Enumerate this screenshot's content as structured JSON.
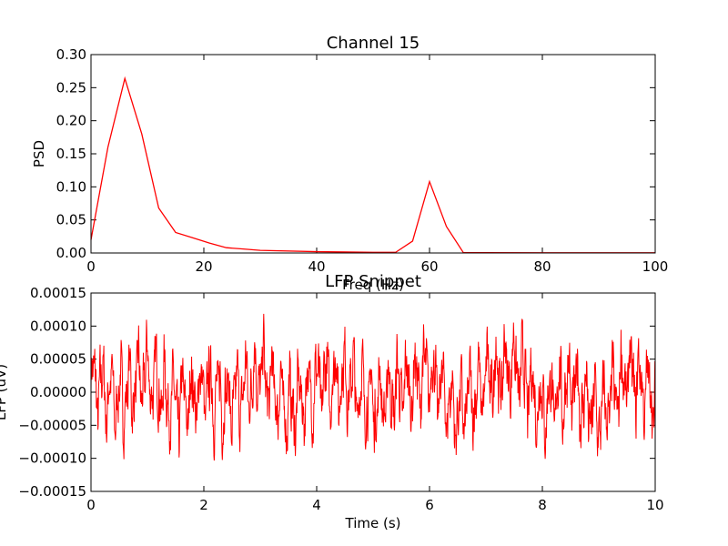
{
  "colors": {
    "line": "#ff0000",
    "axes": "#000000",
    "background": "#ffffff"
  },
  "chart_data": [
    {
      "type": "line",
      "title": "Channel 15",
      "xlabel": "Freq (Hz)",
      "ylabel": "PSD",
      "xlim": [
        0,
        100
      ],
      "ylim": [
        0,
        0.3
      ],
      "xticks": [
        "0",
        "20",
        "40",
        "60",
        "80",
        "100"
      ],
      "yticks": [
        "0.00",
        "0.05",
        "0.10",
        "0.15",
        "0.20",
        "0.25",
        "0.30"
      ],
      "grid": false,
      "series": [
        {
          "x": [
            0,
            3,
            6,
            9,
            12,
            15,
            18,
            21,
            24,
            27,
            30,
            40,
            50,
            54,
            57,
            60,
            63,
            66,
            70,
            80,
            90,
            100
          ],
          "values": [
            0.02,
            0.16,
            0.264,
            0.18,
            0.068,
            0.031,
            0.023,
            0.015,
            0.008,
            0.006,
            0.004,
            0.002,
            0.001,
            0.001,
            0.018,
            0.108,
            0.04,
            0.0005,
            0.0004,
            0.0003,
            0.0003,
            0.0003
          ]
        }
      ]
    },
    {
      "type": "line",
      "title": "LFP Snippet",
      "xlabel": "Time (s)",
      "ylabel": "LFP (uV)",
      "xlim": [
        0,
        10
      ],
      "ylim": [
        -0.00015,
        0.00015
      ],
      "xticks": [
        "0",
        "2",
        "4",
        "6",
        "8",
        "10"
      ],
      "yticks": [
        "−0.00015",
        "−0.00010",
        "−0.00005",
        "0.00000",
        "0.00005",
        "0.00010",
        "0.00015"
      ],
      "grid": false,
      "series": [
        {
          "x": [
            0,
            0.5,
            1,
            1.5,
            2,
            2.5,
            3,
            3.5,
            4,
            4.5,
            5,
            5.5,
            6,
            6.5,
            7,
            7.5,
            8,
            8.5,
            9,
            9.5,
            10
          ],
          "values": [
            3e-05,
            -2e-05,
            5e-05,
            -4e-05,
            1e-05,
            -3e-05,
            6e-05,
            -5e-05,
            2e-05,
            4e-05,
            -3e-05,
            1e-05,
            5e-05,
            -6e-05,
            3e-05,
            8e-05,
            -4e-05,
            2e-05,
            -7e-05,
            5e-05,
            -1e-05
          ]
        }
      ]
    }
  ]
}
